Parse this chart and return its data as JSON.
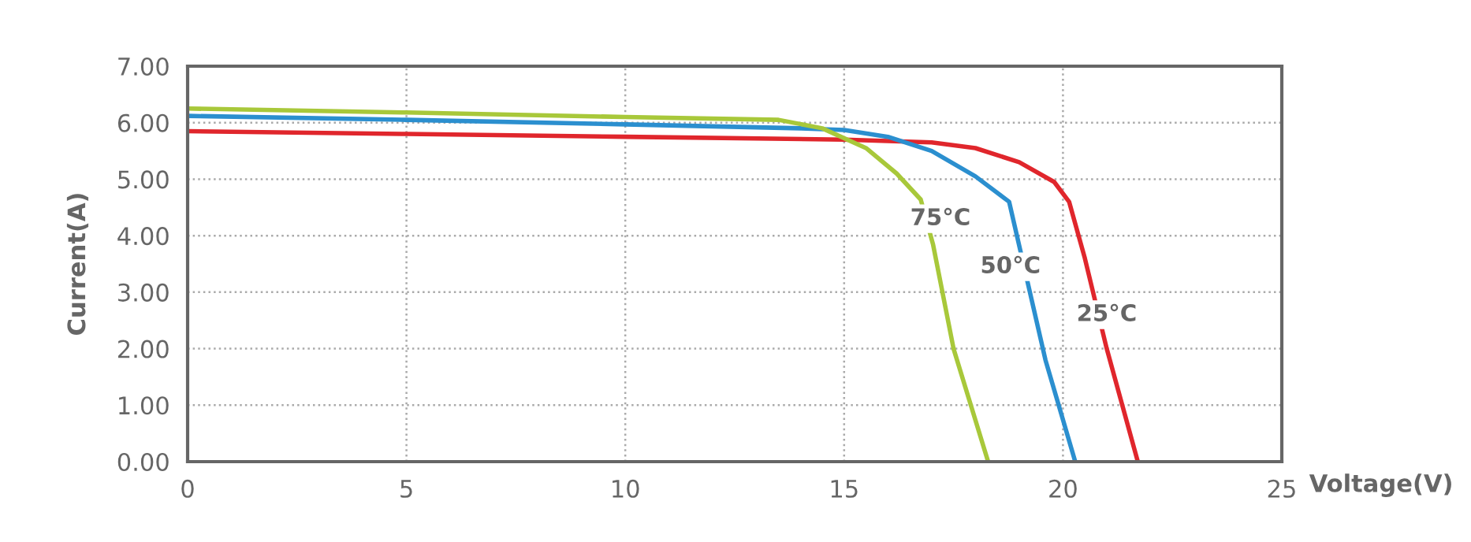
{
  "chart_data": {
    "type": "line",
    "xlabel": "Voltage(V)",
    "ylabel": "Current(A)",
    "xlim": [
      0,
      25
    ],
    "xticks": [
      0,
      5,
      10,
      15,
      20,
      25
    ],
    "ylim": [
      0,
      7
    ],
    "yticks": [
      {
        "value": 0,
        "label": "0.00"
      },
      {
        "value": 1,
        "label": "1.00"
      },
      {
        "value": 2,
        "label": "2.00"
      },
      {
        "value": 3,
        "label": "3.00"
      },
      {
        "value": 4,
        "label": "4.00"
      },
      {
        "value": 5,
        "label": "5.00"
      },
      {
        "value": 6,
        "label": "6.00"
      },
      {
        "value": 7,
        "label": "7.00"
      }
    ],
    "grid": true,
    "marker": "none",
    "line_style": "solid",
    "series": [
      {
        "color": "#e0262c",
        "x": [
          0,
          5,
          10,
          15,
          17,
          18,
          19,
          19.8,
          20.14,
          20.5,
          21.0,
          21.71
        ],
        "values": [
          5.85,
          5.8,
          5.75,
          5.7,
          5.65,
          5.55,
          5.3,
          4.95,
          4.6,
          3.6,
          2.0,
          0
        ]
      },
      {
        "color": "#2b8fcf",
        "x": [
          0,
          5,
          10,
          14,
          15,
          16,
          17,
          18,
          18.77,
          19.6,
          20.28
        ],
        "values": [
          6.12,
          6.05,
          5.97,
          5.9,
          5.87,
          5.75,
          5.5,
          5.05,
          4.6,
          1.8,
          0
        ]
      },
      {
        "color": "#a8c83a",
        "x": [
          0,
          5,
          10,
          13.5,
          14.5,
          15.5,
          16.2,
          16.75,
          17.03,
          17.5,
          18.29
        ],
        "values": [
          6.25,
          6.18,
          6.1,
          6.05,
          5.9,
          5.55,
          5.1,
          4.64,
          3.85,
          2.0,
          0
        ]
      }
    ],
    "annotations": [
      {
        "text": "75°C",
        "x": 17.2,
        "y": 4.3
      },
      {
        "text": "50°C",
        "x": 18.8,
        "y": 3.45
      },
      {
        "text": "25°C",
        "x": 21.0,
        "y": 2.6
      }
    ]
  }
}
